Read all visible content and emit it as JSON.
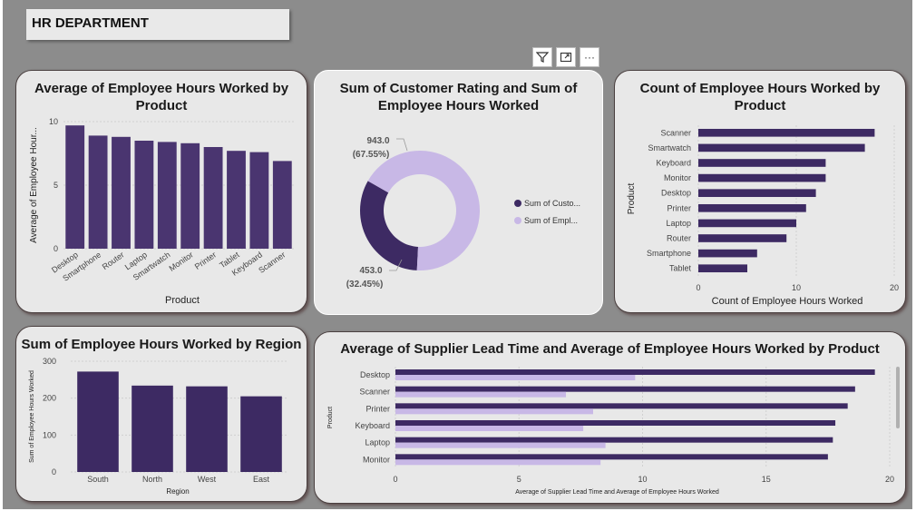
{
  "header": {
    "title": "HR DEPARTMENT"
  },
  "toolbar": {
    "filter_icon": "filter-icon",
    "focus_icon": "focus-mode-icon",
    "more_icon": "more-options-icon",
    "more_label": "···"
  },
  "colors": {
    "dark": "#3d2a63",
    "dark2": "#4a3570",
    "light": "#c8b8e6",
    "card": "#e8e8e8",
    "canvas": "#8c8c8c"
  },
  "chart_data": [
    {
      "id": "avg_hours_by_product",
      "type": "bar",
      "title": "Average of Employee Hours Worked by Product",
      "xlabel": "Product",
      "ylabel": "Average of Employee Hour...",
      "ylim": [
        0,
        10
      ],
      "yticks": [
        "0",
        "5",
        "10"
      ],
      "categories": [
        "Desktop",
        "Smartphone",
        "Router",
        "Laptop",
        "Smartwatch",
        "Monitor",
        "Printer",
        "Tablet",
        "Keyboard",
        "Scanner"
      ],
      "values": [
        9.7,
        8.9,
        8.8,
        8.5,
        8.4,
        8.3,
        8.0,
        7.7,
        7.6,
        6.9
      ]
    },
    {
      "id": "rating_vs_hours",
      "type": "pie",
      "title": "Sum of Customer Rating and Sum of Employee Hours Worked",
      "labels": [
        "Sum of Custo...",
        "Sum of Empl..."
      ],
      "values": [
        453.0,
        943.0
      ],
      "value_labels": [
        "453.0",
        "943.0"
      ],
      "percent_labels": [
        "(32.45%)",
        "(67.55%)"
      ]
    },
    {
      "id": "count_hours_by_product",
      "type": "bar",
      "orientation": "horizontal",
      "title": "Count of Employee Hours Worked by Product",
      "xlabel": "Count of Employee Hours Worked",
      "ylabel": "Product",
      "xlim": [
        0,
        20
      ],
      "xticks": [
        "0",
        "10",
        "20"
      ],
      "categories": [
        "Scanner",
        "Smartwatch",
        "Keyboard",
        "Monitor",
        "Desktop",
        "Printer",
        "Laptop",
        "Router",
        "Smartphone",
        "Tablet"
      ],
      "values": [
        18,
        17,
        13,
        13,
        12,
        11,
        10,
        9,
        6,
        5
      ]
    },
    {
      "id": "hours_by_region",
      "type": "bar",
      "title": "Sum of Employee Hours Worked by Region",
      "xlabel": "Region",
      "ylabel": "Sum of Employee Hours Worked",
      "ylim": [
        0,
        300
      ],
      "yticks": [
        "0",
        "100",
        "200",
        "300"
      ],
      "categories": [
        "South",
        "North",
        "West",
        "East"
      ],
      "values": [
        272,
        234,
        232,
        205
      ]
    },
    {
      "id": "lead_time_and_hours",
      "type": "bar",
      "orientation": "horizontal",
      "title": "Average of Supplier Lead Time and Average of Employee Hours Worked by Product",
      "xlabel": "Average of Supplier Lead Time and Average of Employee Hours Worked",
      "ylabel": "Product",
      "xlim": [
        0,
        20
      ],
      "xticks": [
        "0",
        "5",
        "10",
        "15",
        "20"
      ],
      "categories": [
        "Desktop",
        "Scanner",
        "Printer",
        "Keyboard",
        "Laptop",
        "Monitor"
      ],
      "series": [
        {
          "values": [
            19.4,
            18.6,
            18.3,
            17.8,
            17.7,
            17.5
          ]
        },
        {
          "values": [
            9.7,
            6.9,
            8.0,
            7.6,
            8.5,
            8.3
          ]
        }
      ]
    }
  ]
}
